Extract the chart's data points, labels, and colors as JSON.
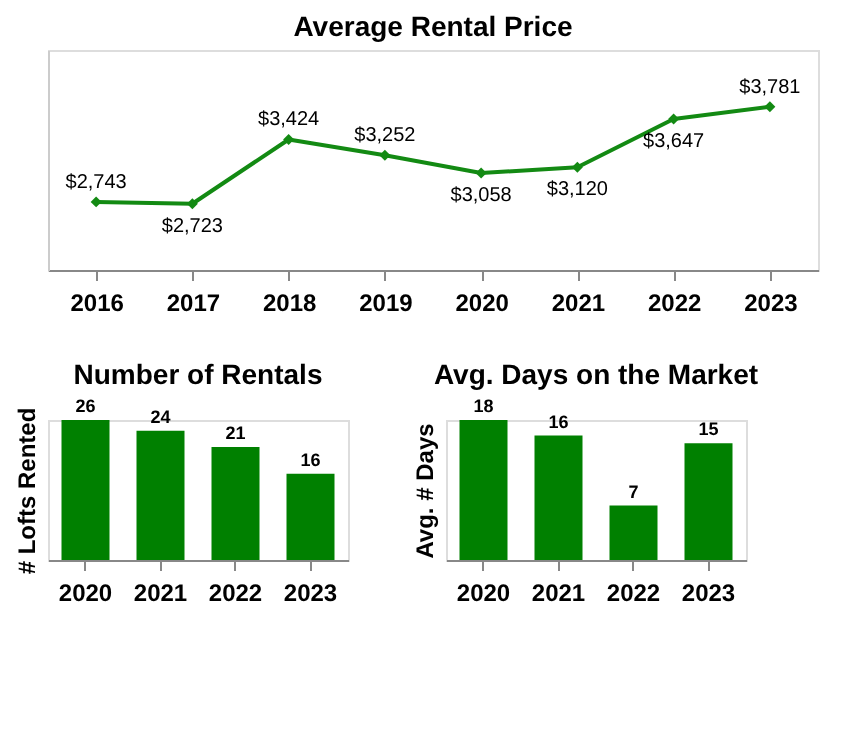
{
  "chart_data": [
    {
      "type": "line",
      "title": "Average Rental Price",
      "categories": [
        "2016",
        "2017",
        "2018",
        "2019",
        "2020",
        "2021",
        "2022",
        "2023"
      ],
      "series": [
        {
          "color": "#138a13",
          "values": [
            2743,
            2723,
            3424,
            3252,
            3058,
            3120,
            3647,
            3781
          ],
          "value_labels": [
            "$2,743",
            "$2,723",
            "$3,424",
            "$3,252",
            "$3,058",
            "$3,120",
            "$3,647",
            "$3,781"
          ]
        }
      ],
      "marker": "diamond",
      "line_style": "solid",
      "grid": false
    },
    {
      "type": "bar",
      "title": "Number of Rentals",
      "ylabel": "# Lofts Rented",
      "categories": [
        "2020",
        "2021",
        "2022",
        "2023"
      ],
      "values": [
        26,
        24,
        21,
        16
      ],
      "color": "#008000",
      "data_labels": true,
      "grid": false
    },
    {
      "type": "bar",
      "title": "Avg. Days on the Market",
      "ylabel": "Avg. # Days",
      "categories": [
        "2020",
        "2021",
        "2022",
        "2023"
      ],
      "values": [
        18,
        16,
        7,
        15
      ],
      "color": "#008000",
      "data_labels": true,
      "grid": false
    }
  ]
}
